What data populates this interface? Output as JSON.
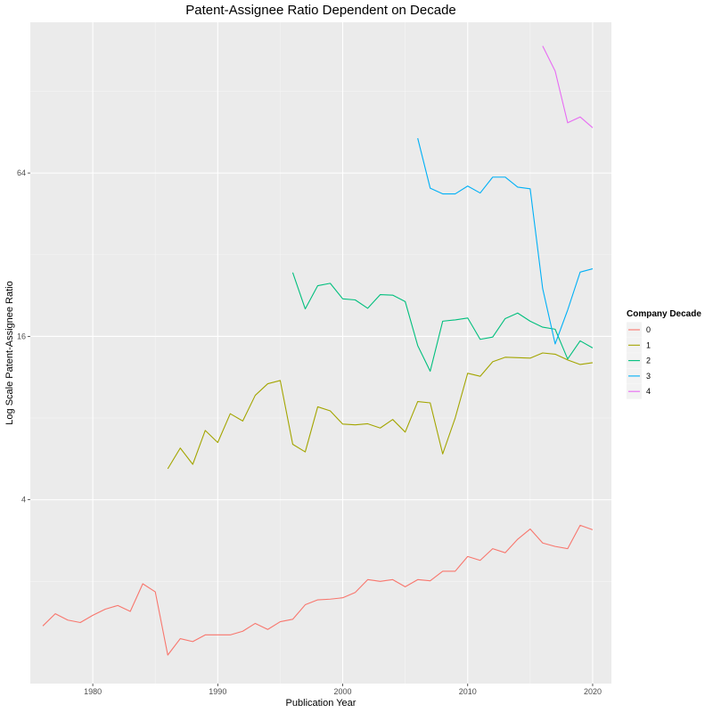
{
  "chart_data": {
    "type": "line",
    "title": "Patent-Assignee Ratio Dependent on Decade",
    "xlabel": "Publication Year",
    "ylabel": "Log Scale Patent-Assignee Ratio",
    "y_scale": "log2",
    "xlim": [
      1975,
      2021.5
    ],
    "ylim": [
      0.84,
      230
    ],
    "x_ticks": [
      1980,
      1990,
      2000,
      2010,
      2020
    ],
    "x_tick_labels": [
      "1980",
      "1990",
      "2000",
      "2010",
      "2020"
    ],
    "y_ticks": [
      4,
      16,
      64
    ],
    "y_tick_labels": [
      "4",
      "16",
      "64"
    ],
    "grid": true,
    "legend": {
      "title": "Company Decade",
      "position": "right"
    },
    "series": [
      {
        "name": "0",
        "color": "#F8766D",
        "points": [
          [
            1976,
            1.37
          ],
          [
            1977,
            1.52
          ],
          [
            1978,
            1.44
          ],
          [
            1979,
            1.41
          ],
          [
            1980,
            1.5
          ],
          [
            1981,
            1.58
          ],
          [
            1982,
            1.63
          ],
          [
            1983,
            1.55
          ],
          [
            1984,
            1.96
          ],
          [
            1985,
            1.83
          ],
          [
            1986,
            1.07
          ],
          [
            1987,
            1.23
          ],
          [
            1988,
            1.2
          ],
          [
            1989,
            1.27
          ],
          [
            1990,
            1.27
          ],
          [
            1991,
            1.27
          ],
          [
            1992,
            1.31
          ],
          [
            1993,
            1.4
          ],
          [
            1994,
            1.33
          ],
          [
            1995,
            1.42
          ],
          [
            1996,
            1.45
          ],
          [
            1997,
            1.64
          ],
          [
            1998,
            1.71
          ],
          [
            1999,
            1.72
          ],
          [
            2000,
            1.74
          ],
          [
            2001,
            1.82
          ],
          [
            2002,
            2.03
          ],
          [
            2003,
            2.0
          ],
          [
            2004,
            2.03
          ],
          [
            2005,
            1.91
          ],
          [
            2006,
            2.03
          ],
          [
            2007,
            2.01
          ],
          [
            2008,
            2.18
          ],
          [
            2009,
            2.18
          ],
          [
            2010,
            2.47
          ],
          [
            2011,
            2.39
          ],
          [
            2012,
            2.64
          ],
          [
            2013,
            2.55
          ],
          [
            2014,
            2.86
          ],
          [
            2015,
            3.12
          ],
          [
            2016,
            2.77
          ],
          [
            2017,
            2.69
          ],
          [
            2018,
            2.64
          ],
          [
            2019,
            3.22
          ],
          [
            2020,
            3.1
          ]
        ]
      },
      {
        "name": "1",
        "color": "#A3A500",
        "points": [
          [
            1986,
            5.2
          ],
          [
            1987,
            6.2
          ],
          [
            1988,
            5.4
          ],
          [
            1989,
            7.2
          ],
          [
            1990,
            6.5
          ],
          [
            1991,
            8.3
          ],
          [
            1992,
            7.8
          ],
          [
            1993,
            9.7
          ],
          [
            1994,
            10.7
          ],
          [
            1995,
            11.0
          ],
          [
            1996,
            6.4
          ],
          [
            1997,
            6.0
          ],
          [
            1998,
            8.8
          ],
          [
            1999,
            8.5
          ],
          [
            2000,
            7.6
          ],
          [
            2001,
            7.55
          ],
          [
            2002,
            7.62
          ],
          [
            2003,
            7.35
          ],
          [
            2004,
            7.9
          ],
          [
            2005,
            7.1
          ],
          [
            2006,
            9.2
          ],
          [
            2007,
            9.1
          ],
          [
            2008,
            5.9
          ],
          [
            2009,
            8.0
          ],
          [
            2010,
            11.7
          ],
          [
            2011,
            11.4
          ],
          [
            2012,
            12.9
          ],
          [
            2013,
            13.4
          ],
          [
            2014,
            13.35
          ],
          [
            2015,
            13.3
          ],
          [
            2016,
            13.9
          ],
          [
            2017,
            13.75
          ],
          [
            2018,
            13.1
          ],
          [
            2019,
            12.6
          ],
          [
            2020,
            12.8
          ]
        ]
      },
      {
        "name": "2",
        "color": "#00BF7D",
        "points": [
          [
            1996,
            27.5
          ],
          [
            1997,
            20.2
          ],
          [
            1998,
            24.6
          ],
          [
            1999,
            25.1
          ],
          [
            2000,
            22.0
          ],
          [
            2001,
            21.8
          ],
          [
            2002,
            20.3
          ],
          [
            2003,
            22.8
          ],
          [
            2004,
            22.7
          ],
          [
            2005,
            21.5
          ],
          [
            2006,
            14.8
          ],
          [
            2007,
            11.9
          ],
          [
            2008,
            18.2
          ],
          [
            2009,
            18.4
          ],
          [
            2010,
            18.7
          ],
          [
            2011,
            15.6
          ],
          [
            2012,
            15.9
          ],
          [
            2013,
            18.6
          ],
          [
            2014,
            19.5
          ],
          [
            2015,
            18.2
          ],
          [
            2016,
            17.3
          ],
          [
            2017,
            17.0
          ],
          [
            2018,
            13.2
          ],
          [
            2019,
            15.4
          ],
          [
            2020,
            14.5
          ]
        ]
      },
      {
        "name": "3",
        "color": "#00B0F6",
        "points": [
          [
            2006,
            86.0
          ],
          [
            2007,
            56.3
          ],
          [
            2008,
            53.6
          ],
          [
            2009,
            53.6
          ],
          [
            2010,
            57.3
          ],
          [
            2011,
            54.0
          ],
          [
            2012,
            61.8
          ],
          [
            2013,
            61.8
          ],
          [
            2014,
            56.8
          ],
          [
            2015,
            56.0
          ],
          [
            2016,
            24.0
          ],
          [
            2017,
            15.0
          ],
          [
            2018,
            20.0
          ],
          [
            2019,
            27.6
          ],
          [
            2020,
            28.4
          ]
        ]
      },
      {
        "name": "4",
        "color": "#E76BF3",
        "points": [
          [
            2016,
            188.0
          ],
          [
            2017,
            152.0
          ],
          [
            2018,
            98.0
          ],
          [
            2019,
            103.0
          ],
          [
            2020,
            94.0
          ]
        ]
      }
    ]
  }
}
